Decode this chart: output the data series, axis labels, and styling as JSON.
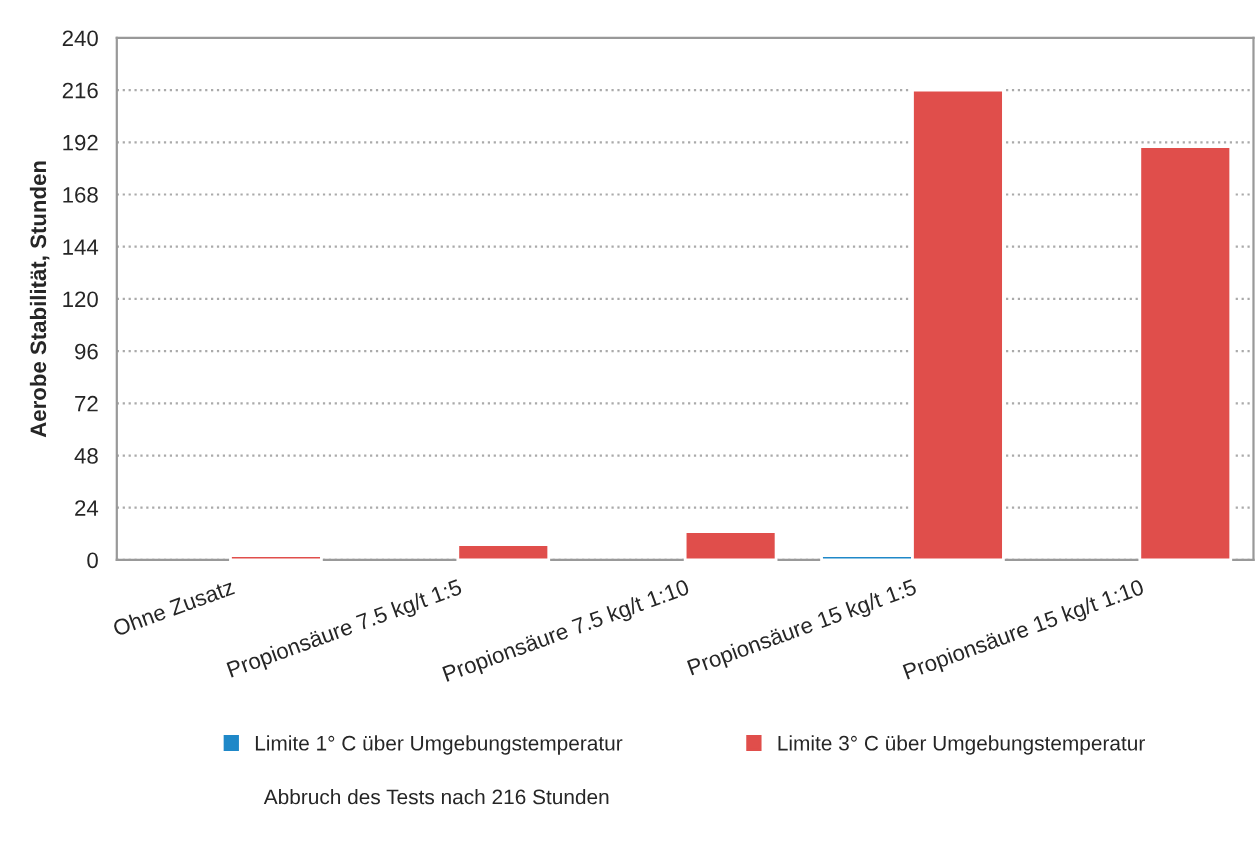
{
  "chart_data": {
    "type": "bar",
    "ylabel": "Aerobe Stabilität, Stunden",
    "categories": [
      "Ohne Zusatz",
      "Propionsäure 7.5 kg/t 1:5",
      "Propionsäure 7.5 kg/t 1:10",
      "Propionsäure 15 kg/t 1:5",
      "Propionsäure 15 kg/t 1:10"
    ],
    "series": [
      {
        "name": "Limite 1° C über Umgebungstemperatur",
        "color": "#1f88c8",
        "values": [
          null,
          null,
          null,
          2,
          null
        ]
      },
      {
        "name": "Limite 3° C über Umgebungstemperatur",
        "color": "#e04e4b",
        "values": [
          2,
          7,
          13,
          216,
          190
        ]
      }
    ],
    "ylim": [
      0,
      240
    ],
    "yticks": [
      0,
      24,
      48,
      72,
      96,
      120,
      144,
      168,
      192,
      216,
      240
    ],
    "grid": "y",
    "legend": "bottom",
    "annotations": [
      "Abbruch des Tests nach 216 Stunden"
    ]
  }
}
